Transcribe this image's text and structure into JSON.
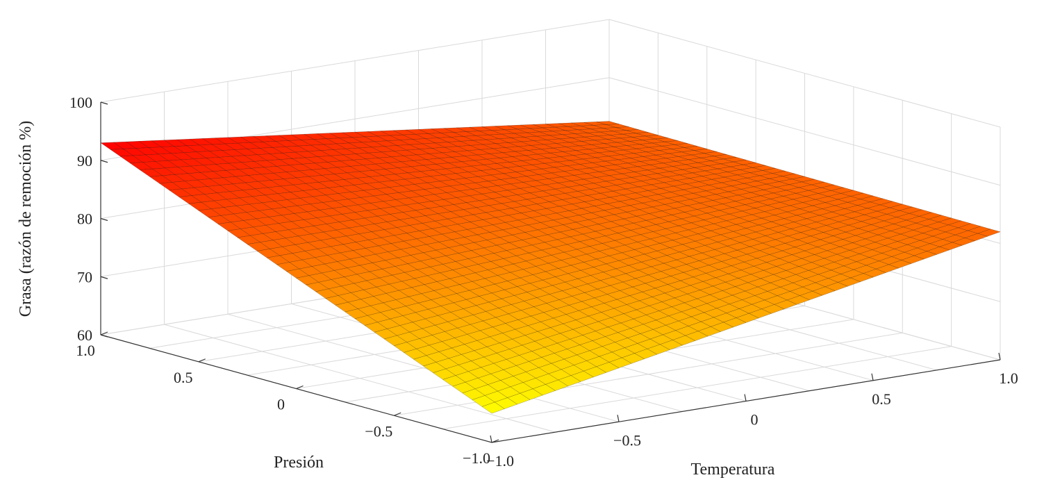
{
  "chart_data": {
    "type": "surface",
    "xlabel": "Temperatura",
    "ylabel": "Presión",
    "zlabel": "Grasa (razón de remoción %)",
    "x_ticks": [
      "−1.0",
      "−0.5",
      "0",
      "0.5",
      "1.0"
    ],
    "y_ticks": [
      "−1.0",
      "−0.5",
      "0",
      "0.5",
      "1.0"
    ],
    "z_ticks": [
      "60",
      "70",
      "80",
      "90",
      "100"
    ],
    "xlim": [
      -1,
      1
    ],
    "ylim": [
      -1,
      1
    ],
    "zlim": [
      60,
      100
    ],
    "grid": true,
    "colormap": "autumn",
    "surface_corners": [
      {
        "temperatura": -1,
        "presion": -1,
        "grasa": 65.0
      },
      {
        "temperatura": -1,
        "presion": 1,
        "grasa": 93.0
      },
      {
        "temperatura": 1,
        "presion": -1,
        "grasa": 82.0
      },
      {
        "temperatura": 1,
        "presion": 1,
        "grasa": 82.5
      }
    ],
    "colors": {
      "low": "#ffff00",
      "high": "#ff0000",
      "grid_line": "#d9d9d9",
      "axis_line": "#333333",
      "mesh_edge": "#000000"
    }
  }
}
